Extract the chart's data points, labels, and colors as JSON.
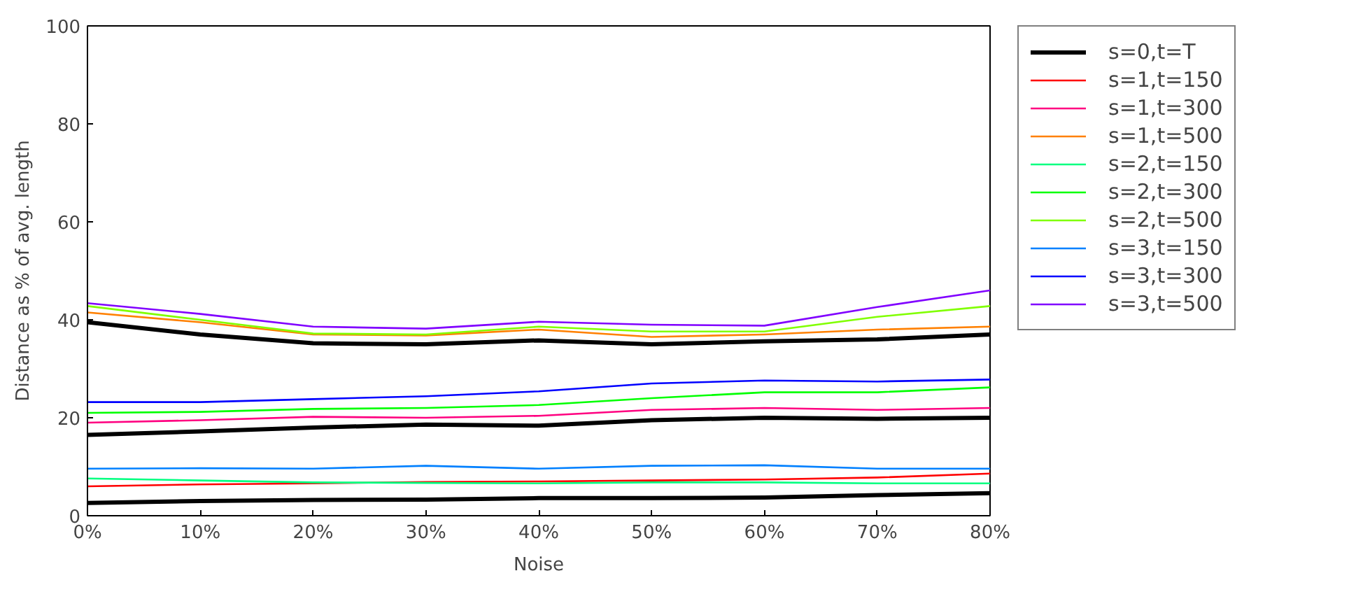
{
  "chart_data": {
    "type": "line",
    "xlabel": "Noise",
    "ylabel": "Distance as % of avg. length",
    "x": [
      0,
      10,
      20,
      30,
      40,
      50,
      60,
      70,
      80
    ],
    "xlim": [
      0,
      80
    ],
    "ylim": [
      0,
      100
    ],
    "xticks": [
      {
        "value": 0,
        "label": "0%"
      },
      {
        "value": 10,
        "label": "10%"
      },
      {
        "value": 20,
        "label": "20%"
      },
      {
        "value": 30,
        "label": "30%"
      },
      {
        "value": 40,
        "label": "40%"
      },
      {
        "value": 50,
        "label": "50%"
      },
      {
        "value": 60,
        "label": "60%"
      },
      {
        "value": 70,
        "label": "70%"
      },
      {
        "value": 80,
        "label": "80%"
      }
    ],
    "yticks": [
      0,
      20,
      40,
      60,
      80,
      100
    ],
    "grid": false,
    "legend": "right",
    "series": [
      {
        "name": "s=0,t=T",
        "color": "#000000",
        "values": [
          39.5,
          37,
          35.2,
          35,
          35.8,
          35,
          35.6,
          36,
          37
        ]
      },
      {
        "color": "#000000",
        "values": [
          16.5,
          17.2,
          18,
          18.6,
          18.4,
          19.5,
          20,
          19.8,
          20
        ]
      },
      {
        "color": "#000000",
        "values": [
          2.6,
          3,
          3.2,
          3.3,
          3.6,
          3.6,
          3.7,
          4.2,
          4.6
        ]
      },
      {
        "name": "s=1,t=150",
        "color": "#ff0000",
        "values": [
          6,
          6.4,
          6.6,
          6.9,
          7,
          7.2,
          7.4,
          7.8,
          8.6
        ]
      },
      {
        "name": "s=1,t=300",
        "color": "#ff0080",
        "values": [
          19,
          19.5,
          20.2,
          20,
          20.4,
          21.6,
          22,
          21.6,
          22
        ]
      },
      {
        "name": "s=1,t=500",
        "color": "#ff8000",
        "values": [
          41.5,
          39.5,
          37,
          36.8,
          38,
          36.5,
          37,
          38,
          38.6
        ]
      },
      {
        "name": "s=2,t=150",
        "color": "#00ff80",
        "values": [
          7.6,
          7.2,
          6.8,
          6.7,
          6.6,
          6.8,
          6.8,
          6.6,
          6.6
        ]
      },
      {
        "name": "s=2,t=300",
        "color": "#00ff00",
        "values": [
          21,
          21.2,
          21.8,
          22,
          22.6,
          24,
          25.2,
          25.2,
          26.2
        ]
      },
      {
        "name": "s=2,t=500",
        "color": "#80ff00",
        "values": [
          42.8,
          40,
          37.2,
          37,
          38.6,
          37.6,
          37.6,
          40.6,
          42.8
        ]
      },
      {
        "name": "s=3,t=150",
        "color": "#0080ff",
        "values": [
          9.6,
          9.7,
          9.6,
          10.2,
          9.6,
          10.2,
          10.3,
          9.6,
          9.6
        ]
      },
      {
        "name": "s=3,t=300",
        "color": "#0000ff",
        "values": [
          23.2,
          23.2,
          23.8,
          24.4,
          25.4,
          27,
          27.6,
          27.4,
          27.8
        ]
      },
      {
        "name": "s=3,t=500",
        "color": "#8000ff",
        "values": [
          43.4,
          41.2,
          38.6,
          38.2,
          39.6,
          39,
          38.8,
          42.6,
          46
        ]
      }
    ]
  }
}
